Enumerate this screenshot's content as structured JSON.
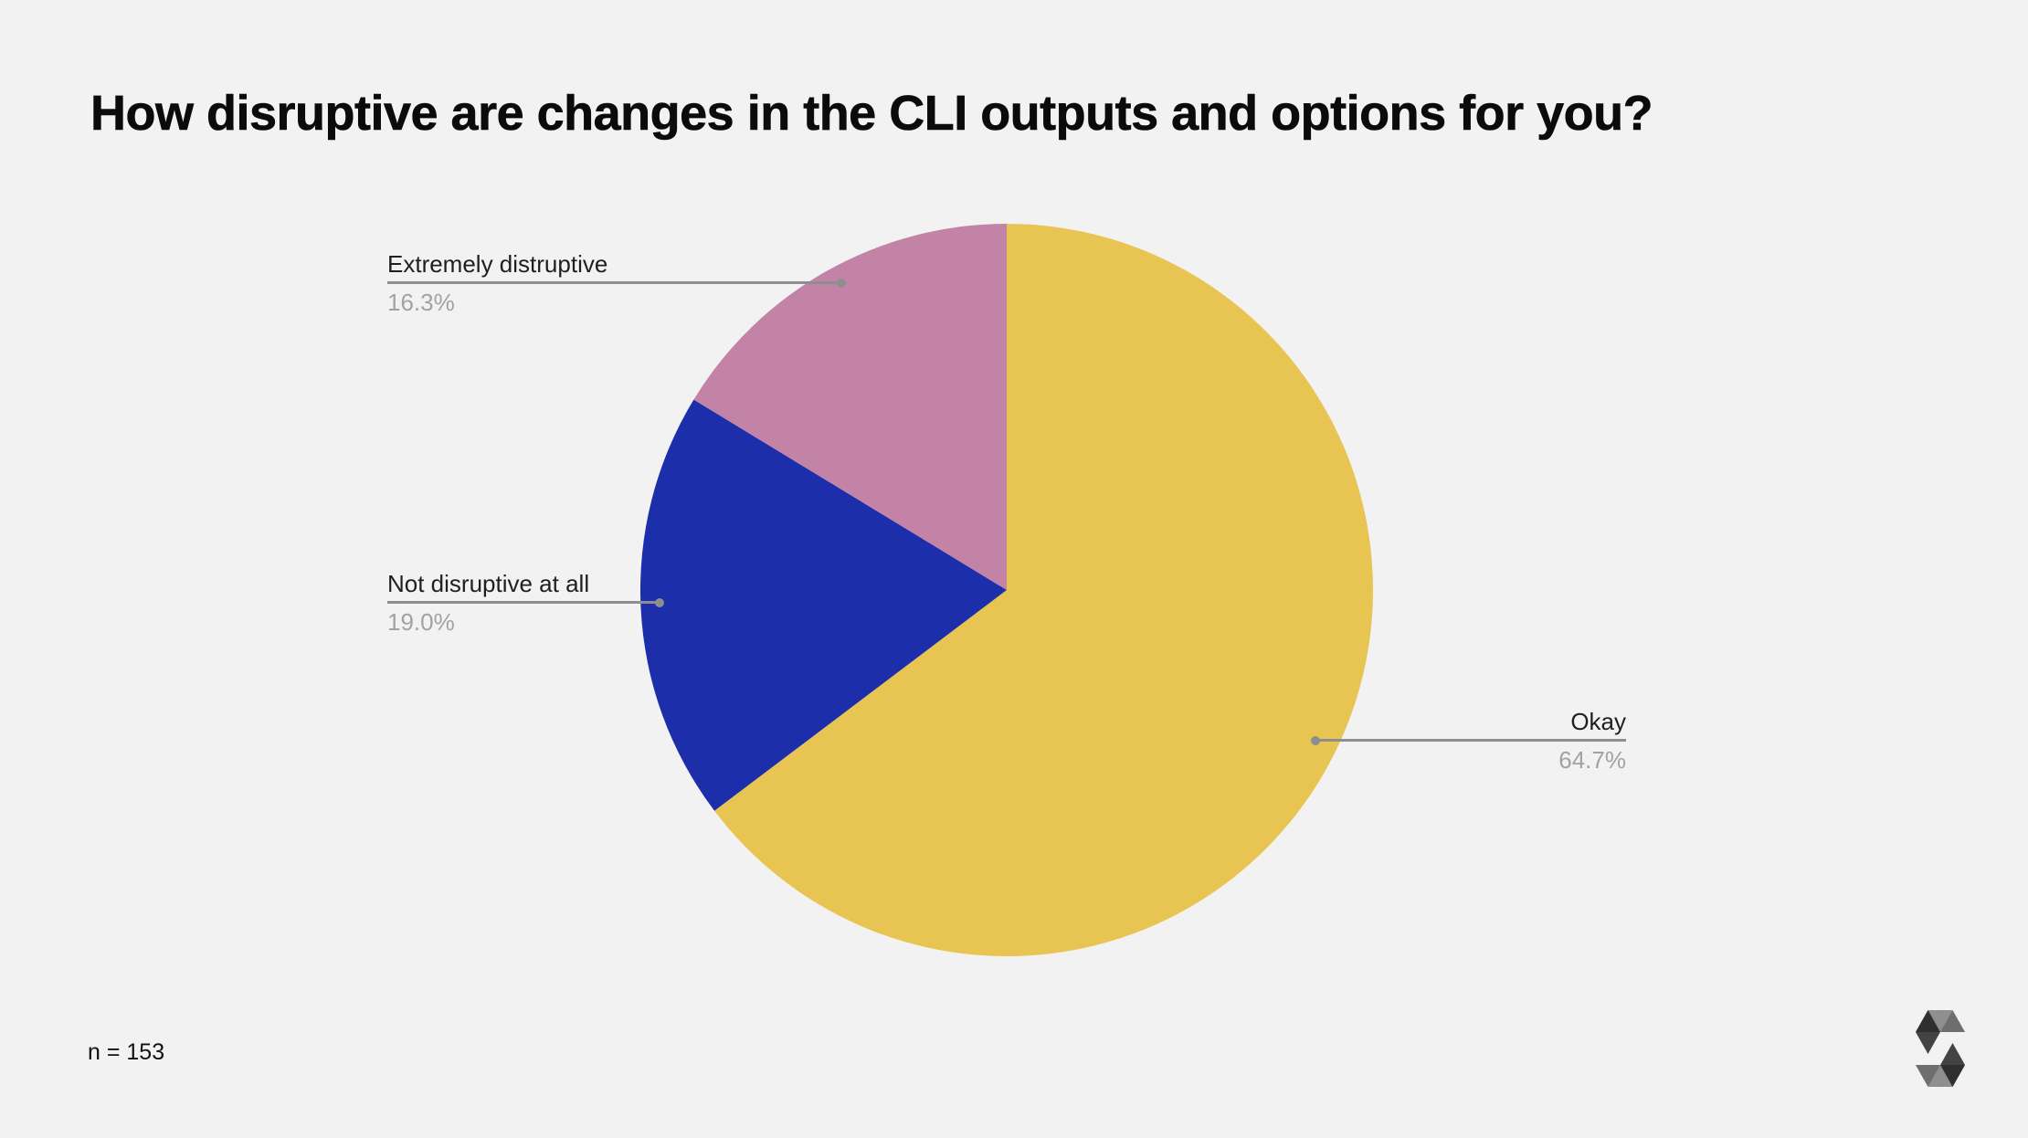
{
  "title": "How disruptive are changes in the CLI outputs and options for you?",
  "chart_data": {
    "type": "pie",
    "title": "How disruptive are changes in the CLI outputs and options for you?",
    "sample_note": "n = 153",
    "sample_size": 153,
    "start_angle_deg": 0,
    "direction": "clockwise",
    "legend_position": "callout-labels",
    "slices": [
      {
        "label": "Okay",
        "value_pct": 64.7,
        "pct_label": "64.7%",
        "color": "#E8C552"
      },
      {
        "label": "Not disruptive at all",
        "value_pct": 19.0,
        "pct_label": "19.0%",
        "color": "#1C2EA9"
      },
      {
        "label": "Extremely distruptive",
        "value_pct": 16.3,
        "pct_label": "16.3%",
        "color": "#C383A6"
      }
    ]
  },
  "branding": {
    "logo_icon": "solidity-logo"
  },
  "colors": {
    "background": "#F2F2F2",
    "title_text": "#0B0B0B",
    "label_text": "#1F1F1F",
    "percent_text": "#A2A2A2",
    "leader_line": "#8E8E8E"
  }
}
